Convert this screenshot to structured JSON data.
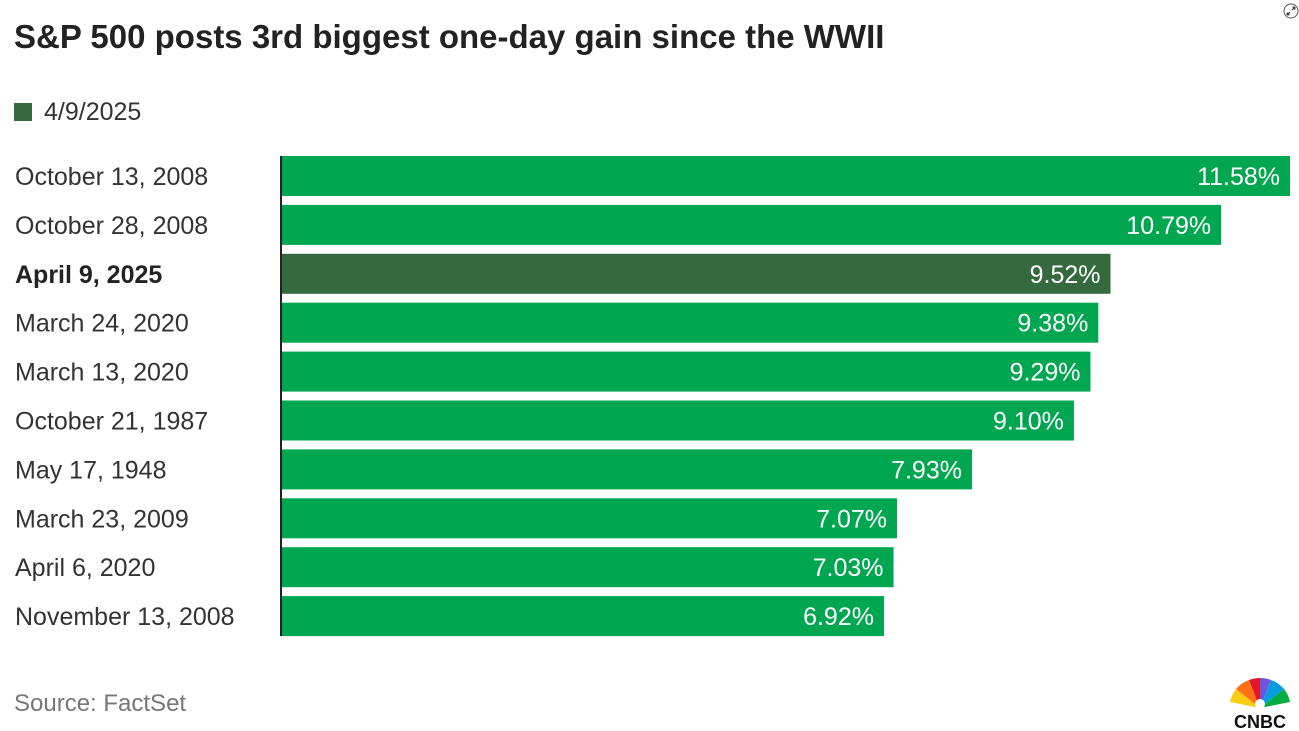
{
  "title": "S&P 500 posts 3rd biggest one-day gain since the WWII",
  "legend": {
    "label": "4/9/2025",
    "color": "#356a3f"
  },
  "source": "Source: FactSet",
  "logo_text": "CNBC",
  "colors": {
    "bar": "#00a650",
    "highlight": "#356a3f",
    "axis": "#222222"
  },
  "icons": {
    "expand": "expand-icon",
    "logo": "cnbc-peacock-logo"
  },
  "chart_data": {
    "type": "bar",
    "orientation": "horizontal",
    "title": "S&P 500 posts 3rd biggest one-day gain since the WWII",
    "categories": [
      "October 13, 2008",
      "October 28, 2008",
      "April 9, 2025",
      "March 24, 2020",
      "March 13, 2020",
      "October 21, 1987",
      "May 17, 1948",
      "March 23, 2009",
      "April 6, 2020",
      "November 13, 2008"
    ],
    "values": [
      11.58,
      10.79,
      9.52,
      9.38,
      9.29,
      9.1,
      7.93,
      7.07,
      7.03,
      6.92
    ],
    "value_labels": [
      "11.58%",
      "10.79%",
      "9.52%",
      "9.38%",
      "9.29%",
      "9.10%",
      "7.93%",
      "7.07%",
      "7.03%",
      "6.92%"
    ],
    "highlight_index": 2,
    "xlim": [
      0,
      11.58
    ],
    "xlabel": "",
    "ylabel": "",
    "grid": false,
    "legend": {
      "entries": [
        "4/9/2025"
      ],
      "position": "top-left"
    }
  }
}
